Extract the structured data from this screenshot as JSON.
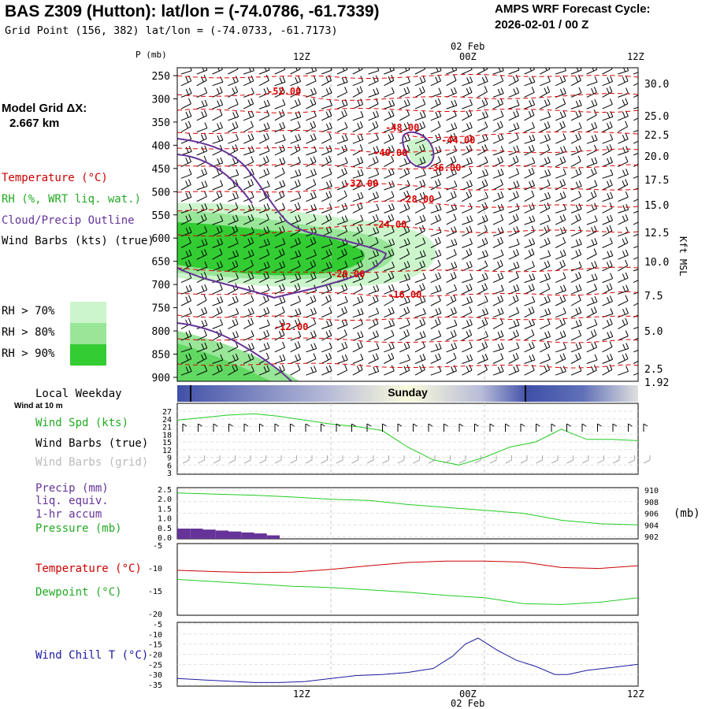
{
  "header": {
    "title": "BAS Z309 (Hutton):  lat/lon = (-74.0786, -61.7339)",
    "grid_point": "Grid Point (156, 382) lat/lon = (-74.0733, -61.7173)",
    "cycle_label": "AMPS WRF Forecast Cycle:",
    "cycle_value": "2026-02-01 / 00  Z"
  },
  "model_grid": {
    "label": "Model Grid ΔX:",
    "value": "2.667 km"
  },
  "time_axis": {
    "ticks": [
      "12Z",
      "00Z",
      "12Z"
    ],
    "date_label": "02 Feb"
  },
  "legend": {
    "temperature": "Temperature (°C)",
    "rh": "RH (%, WRT liq. wat.)",
    "cloud": "Cloud/Precip Outline",
    "wind": "Wind Barbs (kts) (true)",
    "rh_levels": [
      "RH > 70%",
      "RH > 80%",
      "RH > 90%"
    ],
    "rh_colors": [
      "#ccf5cc",
      "#99e699",
      "#33cc33"
    ]
  },
  "weekday": {
    "label": "Local Weekday",
    "day": "Sunday",
    "wind_note": "Wind at 10 m"
  },
  "panel_labels": {
    "wind_spd": "Wind Spd (kts)",
    "barbs_true": "Wind Barbs (true)",
    "barbs_grid": "Wind Barbs (grid)",
    "precip": [
      "Precip (mm)",
      "liq. equiv.",
      "1-hr accum"
    ],
    "pressure": "Pressure (mb)",
    "pressure_unit": "(mb)",
    "temperature": "Temperature (°C)",
    "dewpoint": "Dewpoint (°C)",
    "windchill": "Wind Chill T (°C)"
  },
  "colors": {
    "temp": "#cc0000",
    "green": "#22cc22",
    "purple": "#663399",
    "windchill": "#1a1aa0",
    "grid": "#b0b0b0"
  },
  "chart_data": [
    {
      "type": "heatmap",
      "name": "vertical cross-section",
      "ylabel": "P (mb)",
      "y_ticks": [
        250,
        300,
        350,
        400,
        450,
        500,
        550,
        600,
        650,
        700,
        750,
        800,
        850,
        900
      ],
      "ylim": [
        250,
        910
      ],
      "right_axis_label": "Kft MSL",
      "right_ticks": [
        "30.0",
        "25.0",
        "22.5",
        "20.0",
        "17.5",
        "15.0",
        "12.5",
        "10.0",
        "7.5",
        "5.0",
        "2.5",
        "1.92"
      ],
      "isotherm_labels": [
        "-52.00",
        "-48.00",
        "-44.00",
        "-40.00",
        "-36.00",
        "-32.00",
        "-28.00",
        "-24.00",
        "-20.00",
        "-16.00",
        "-12.00"
      ]
    },
    {
      "type": "line",
      "name": "wind speed",
      "y_ticks": [
        27,
        24,
        21,
        18,
        15,
        12,
        9,
        6,
        3
      ],
      "ylim": [
        3,
        27
      ],
      "x": [
        0,
        2,
        4,
        6,
        8,
        10,
        12,
        14,
        16,
        18,
        20,
        22,
        24,
        26,
        28,
        30,
        32,
        34,
        36
      ],
      "values": [
        23.5,
        24.5,
        25.5,
        26,
        25,
        23.5,
        22,
        21,
        19.5,
        13,
        8,
        6,
        9,
        13,
        15,
        20,
        16,
        16,
        15.5
      ]
    },
    {
      "type": "line",
      "name": "pressure",
      "y_ticks": [
        "910",
        "908",
        "906",
        "904",
        "902"
      ],
      "ylim": [
        902,
        910
      ],
      "left_ticks": [
        "2.5",
        "2.0",
        "1.5",
        "1.0",
        "0.5",
        "0.0"
      ],
      "x": [
        0,
        3,
        6,
        9,
        12,
        15,
        18,
        21,
        24,
        27,
        30,
        33,
        36
      ],
      "values": [
        909.5,
        909.3,
        909.1,
        908.8,
        908.4,
        908.2,
        907.5,
        907.0,
        906.5,
        906.0,
        904.8,
        904.2,
        904.0
      ],
      "precip_x": [
        0,
        1,
        2,
        3,
        4,
        5,
        6,
        7,
        8
      ],
      "precip": [
        0.45,
        0.45,
        0.4,
        0.35,
        0.3,
        0.25,
        0.2,
        0.1,
        0.0
      ]
    },
    {
      "type": "line",
      "name": "temperature and dewpoint",
      "y_ticks": [
        "-5",
        "-10",
        "-15",
        "-20"
      ],
      "ylim": [
        -20,
        -5
      ],
      "x": [
        0,
        3,
        6,
        9,
        12,
        15,
        18,
        21,
        24,
        27,
        30,
        33,
        36
      ],
      "temperature": [
        -10.5,
        -10.8,
        -11.0,
        -10.9,
        -10.3,
        -9.5,
        -8.8,
        -8.5,
        -8.5,
        -8.7,
        -9.9,
        -10.1,
        -9.5
      ],
      "dewpoint": [
        -12.5,
        -13.0,
        -13.5,
        -14.0,
        -14.3,
        -14.8,
        -15.3,
        -16.0,
        -16.5,
        -17.8,
        -18.0,
        -17.5,
        -16.5
      ]
    },
    {
      "type": "line",
      "name": "wind chill",
      "y_ticks": [
        "-5",
        "-10",
        "-15",
        "-20",
        "-25",
        "-30",
        "-35"
      ],
      "ylim": [
        -35,
        -5
      ],
      "x": [
        0,
        3,
        6,
        8,
        10,
        12,
        14,
        16,
        18,
        20,
        21.5,
        22.5,
        23.5,
        25,
        26.5,
        28,
        29.5,
        30.5,
        32,
        34,
        36
      ],
      "values": [
        -32,
        -33,
        -34,
        -34,
        -33.5,
        -32,
        -30.5,
        -30,
        -29,
        -27,
        -21,
        -15,
        -12,
        -18,
        -23,
        -26,
        -30,
        -30,
        -28,
        -26.5,
        -25
      ]
    }
  ]
}
